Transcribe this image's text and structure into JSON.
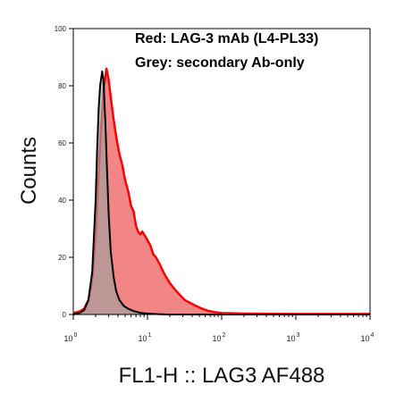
{
  "chart_data": {
    "type": "area",
    "title": "",
    "xlabel": "FL1-H :: LAG3 AF488",
    "ylabel": "Counts",
    "x_scale": "log",
    "xlim": [
      1,
      10000
    ],
    "ylim": [
      0,
      100
    ],
    "x_ticks": [
      {
        "value": 1,
        "base": "10",
        "exp": "0"
      },
      {
        "value": 10,
        "base": "10",
        "exp": "1"
      },
      {
        "value": 100,
        "base": "10",
        "exp": "2"
      },
      {
        "value": 1000,
        "base": "10",
        "exp": "3"
      },
      {
        "value": 10000,
        "base": "10",
        "exp": "4"
      }
    ],
    "y_ticks": [
      {
        "value": 0,
        "label": "0"
      },
      {
        "value": 20,
        "label": "20"
      },
      {
        "value": 40,
        "label": "40"
      },
      {
        "value": 60,
        "label": "60"
      },
      {
        "value": 80,
        "label": "80"
      },
      {
        "value": 100,
        "label": "100"
      }
    ],
    "legend": {
      "placement": "top-right",
      "entries": [
        {
          "text": "Red: LAG-3 mAb (L4-PL33)"
        },
        {
          "text": "Grey: secondary Ab-only"
        }
      ]
    },
    "series": [
      {
        "color": "#ff0000",
        "fill": "#f07070",
        "points": [
          [
            1,
            0.5
          ],
          [
            1.2,
            1
          ],
          [
            1.4,
            2
          ],
          [
            1.6,
            5
          ],
          [
            1.8,
            12
          ],
          [
            2,
            28
          ],
          [
            2.2,
            50
          ],
          [
            2.4,
            68
          ],
          [
            2.6,
            80
          ],
          [
            2.8,
            86
          ],
          [
            3.0,
            82
          ],
          [
            3.2,
            76
          ],
          [
            3.5,
            68
          ],
          [
            3.8,
            62
          ],
          [
            4.2,
            56
          ],
          [
            4.6,
            52
          ],
          [
            5.0,
            47
          ],
          [
            5.5,
            43
          ],
          [
            6.0,
            38
          ],
          [
            6.5,
            36
          ],
          [
            7.0,
            31
          ],
          [
            7.5,
            29
          ],
          [
            8.0,
            28
          ],
          [
            8.5,
            29
          ],
          [
            9.0,
            28
          ],
          [
            10,
            26
          ],
          [
            11,
            24
          ],
          [
            12,
            21
          ],
          [
            13,
            20
          ],
          [
            15,
            17
          ],
          [
            17,
            14
          ],
          [
            20,
            11
          ],
          [
            23,
            9
          ],
          [
            27,
            7
          ],
          [
            32,
            5
          ],
          [
            38,
            4
          ],
          [
            45,
            3
          ],
          [
            55,
            2
          ],
          [
            65,
            1.3
          ],
          [
            80,
            0.8
          ],
          [
            100,
            0.5
          ],
          [
            200,
            0.3
          ],
          [
            1000,
            0.2
          ],
          [
            10000,
            0.2
          ]
        ]
      },
      {
        "color": "#000000",
        "fill": "#a0a0a0",
        "points": [
          [
            1,
            0
          ],
          [
            1.2,
            0.5
          ],
          [
            1.4,
            1.5
          ],
          [
            1.6,
            5
          ],
          [
            1.8,
            15
          ],
          [
            2.0,
            40
          ],
          [
            2.1,
            58
          ],
          [
            2.2,
            72
          ],
          [
            2.3,
            80
          ],
          [
            2.45,
            85
          ],
          [
            2.55,
            82
          ],
          [
            2.7,
            68
          ],
          [
            2.85,
            50
          ],
          [
            3.0,
            35
          ],
          [
            3.2,
            22
          ],
          [
            3.5,
            13
          ],
          [
            3.8,
            8
          ],
          [
            4.2,
            5
          ],
          [
            4.8,
            3
          ],
          [
            5.5,
            2
          ],
          [
            6.5,
            1.2
          ],
          [
            8,
            0.6
          ],
          [
            10,
            0.3
          ],
          [
            15,
            0.1
          ],
          [
            20,
            0
          ],
          [
            100,
            0
          ],
          [
            10000,
            0
          ]
        ]
      }
    ]
  }
}
